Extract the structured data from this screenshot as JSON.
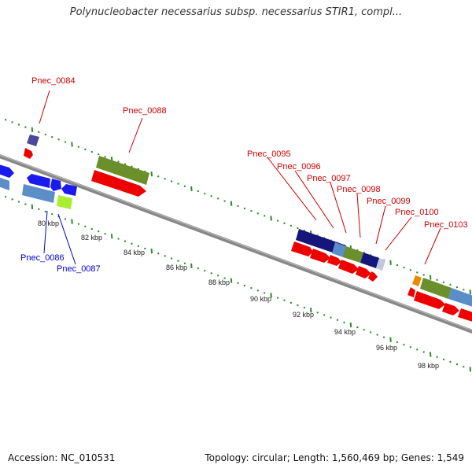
{
  "title": "Polynucleobacter necessarius subsp. necessarius STIR1, compl...",
  "footer": {
    "accession": "Accession: NC_010531",
    "summary": "Topology: circular; Length: 1,560,469 bp; Genes: 1,549"
  },
  "colors": {
    "tick": "#2a8a2a",
    "backbone": "#888888",
    "label_forward": "#cc0000",
    "label_reverse": "#0000cc"
  },
  "scale_labels": [
    "80 kbp",
    "82 kbp",
    "84 kbp",
    "86 kbp",
    "88 kbp",
    "90 kbp",
    "92 kbp",
    "94 kbp",
    "96 kbp",
    "98 kbp"
  ],
  "gene_labels": [
    {
      "text": "Pnec_0084",
      "strand": "forward"
    },
    {
      "text": "Pnec_0088",
      "strand": "forward"
    },
    {
      "text": "Pnec_0095",
      "strand": "forward"
    },
    {
      "text": "Pnec_0096",
      "strand": "forward"
    },
    {
      "text": "Pnec_0097",
      "strand": "forward"
    },
    {
      "text": "Pnec_0098",
      "strand": "forward"
    },
    {
      "text": "Pnec_0099",
      "strand": "forward"
    },
    {
      "text": "Pnec_0100",
      "strand": "forward"
    },
    {
      "text": "Pnec_0103",
      "strand": "forward"
    },
    {
      "text": "Pnec_0086",
      "strand": "reverse"
    },
    {
      "text": "Pnec_0087",
      "strand": "reverse"
    }
  ]
}
